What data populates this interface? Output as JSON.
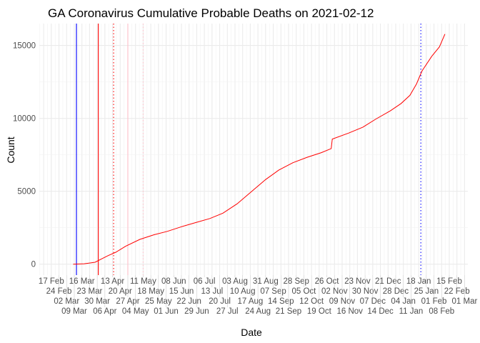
{
  "chart_data": {
    "type": "line",
    "title": "GA Coronavirus Cumulative Probable Deaths on 2021-02-12",
    "xlabel": "Date",
    "ylabel": "Count",
    "xlim": [
      "2020-02-06",
      "2021-03-04"
    ],
    "ylim": [
      -750,
      16500
    ],
    "grid": true,
    "legend": "none",
    "x_ticks": {
      "start": "2020-02-17",
      "labels": [
        "17 Feb",
        "24 Feb",
        "02 Mar",
        "09 Mar",
        "16 Mar",
        "23 Mar",
        "30 Mar",
        "06 Apr",
        "13 Apr",
        "20 Apr",
        "27 Apr",
        "04 May",
        "11 May",
        "18 May",
        "25 May",
        "01 Jun",
        "08 Jun",
        "15 Jun",
        "22 Jun",
        "29 Jun",
        "06 Jul",
        "13 Jul",
        "20 Jul",
        "27 Jul",
        "03 Aug",
        "10 Aug",
        "17 Aug",
        "24 Aug",
        "31 Aug",
        "07 Sep",
        "14 Sep",
        "21 Sep",
        "28 Sep",
        "05 Oct",
        "12 Oct",
        "19 Oct",
        "26 Oct",
        "02 Nov",
        "09 Nov",
        "16 Nov",
        "23 Nov",
        "30 Nov",
        "07 Dec",
        "14 Dec",
        "21 Dec",
        "28 Dec",
        "04 Jan",
        "11 Jan",
        "18 Jan",
        "25 Jan",
        "01 Feb",
        "08 Feb",
        "15 Feb",
        "22 Feb",
        "01 Mar"
      ]
    },
    "y_ticks": [
      0,
      5000,
      10000,
      15000
    ],
    "series": [
      {
        "color": "#ff0000",
        "points": [
          [
            "2020-03-08",
            0
          ],
          [
            "2020-03-18",
            30
          ],
          [
            "2020-03-28",
            130
          ],
          [
            "2020-04-03",
            360
          ],
          [
            "2020-04-09",
            590
          ],
          [
            "2020-04-16",
            820
          ],
          [
            "2020-04-25",
            1230
          ],
          [
            "2020-05-08",
            1700
          ],
          [
            "2020-05-21",
            2020
          ],
          [
            "2020-06-02",
            2250
          ],
          [
            "2020-06-15",
            2570
          ],
          [
            "2020-06-28",
            2850
          ],
          [
            "2020-07-11",
            3130
          ],
          [
            "2020-07-23",
            3500
          ],
          [
            "2020-08-05",
            4140
          ],
          [
            "2020-08-18",
            4970
          ],
          [
            "2020-08-31",
            5800
          ],
          [
            "2020-09-12",
            6450
          ],
          [
            "2020-09-25",
            6960
          ],
          [
            "2020-10-08",
            7330
          ],
          [
            "2020-10-21",
            7650
          ],
          [
            "2020-10-30",
            7930
          ],
          [
            "2020-10-31",
            8580
          ],
          [
            "2020-11-15",
            8990
          ],
          [
            "2020-11-28",
            9400
          ],
          [
            "2020-12-10",
            9960
          ],
          [
            "2020-12-23",
            10510
          ],
          [
            "2021-01-02",
            11020
          ],
          [
            "2021-01-10",
            11580
          ],
          [
            "2021-01-16",
            12360
          ],
          [
            "2021-01-21",
            13240
          ],
          [
            "2021-01-30",
            14260
          ],
          [
            "2021-02-06",
            14900
          ],
          [
            "2021-02-11",
            15780
          ]
        ]
      }
    ],
    "vertical_lines": [
      {
        "date": "2020-03-11",
        "color": "#0000ff",
        "style": "solid"
      },
      {
        "date": "2020-03-31",
        "color": "#ff0000",
        "style": "solid"
      },
      {
        "date": "2020-04-14",
        "color": "#ff0000",
        "style": "dotted"
      },
      {
        "date": "2020-04-27",
        "color": "#ffc0cb",
        "style": "solid"
      },
      {
        "date": "2020-05-11",
        "color": "#ffc0cb",
        "style": "dotted"
      },
      {
        "date": "2021-01-20",
        "color": "#0000ff",
        "style": "dotted"
      }
    ]
  }
}
